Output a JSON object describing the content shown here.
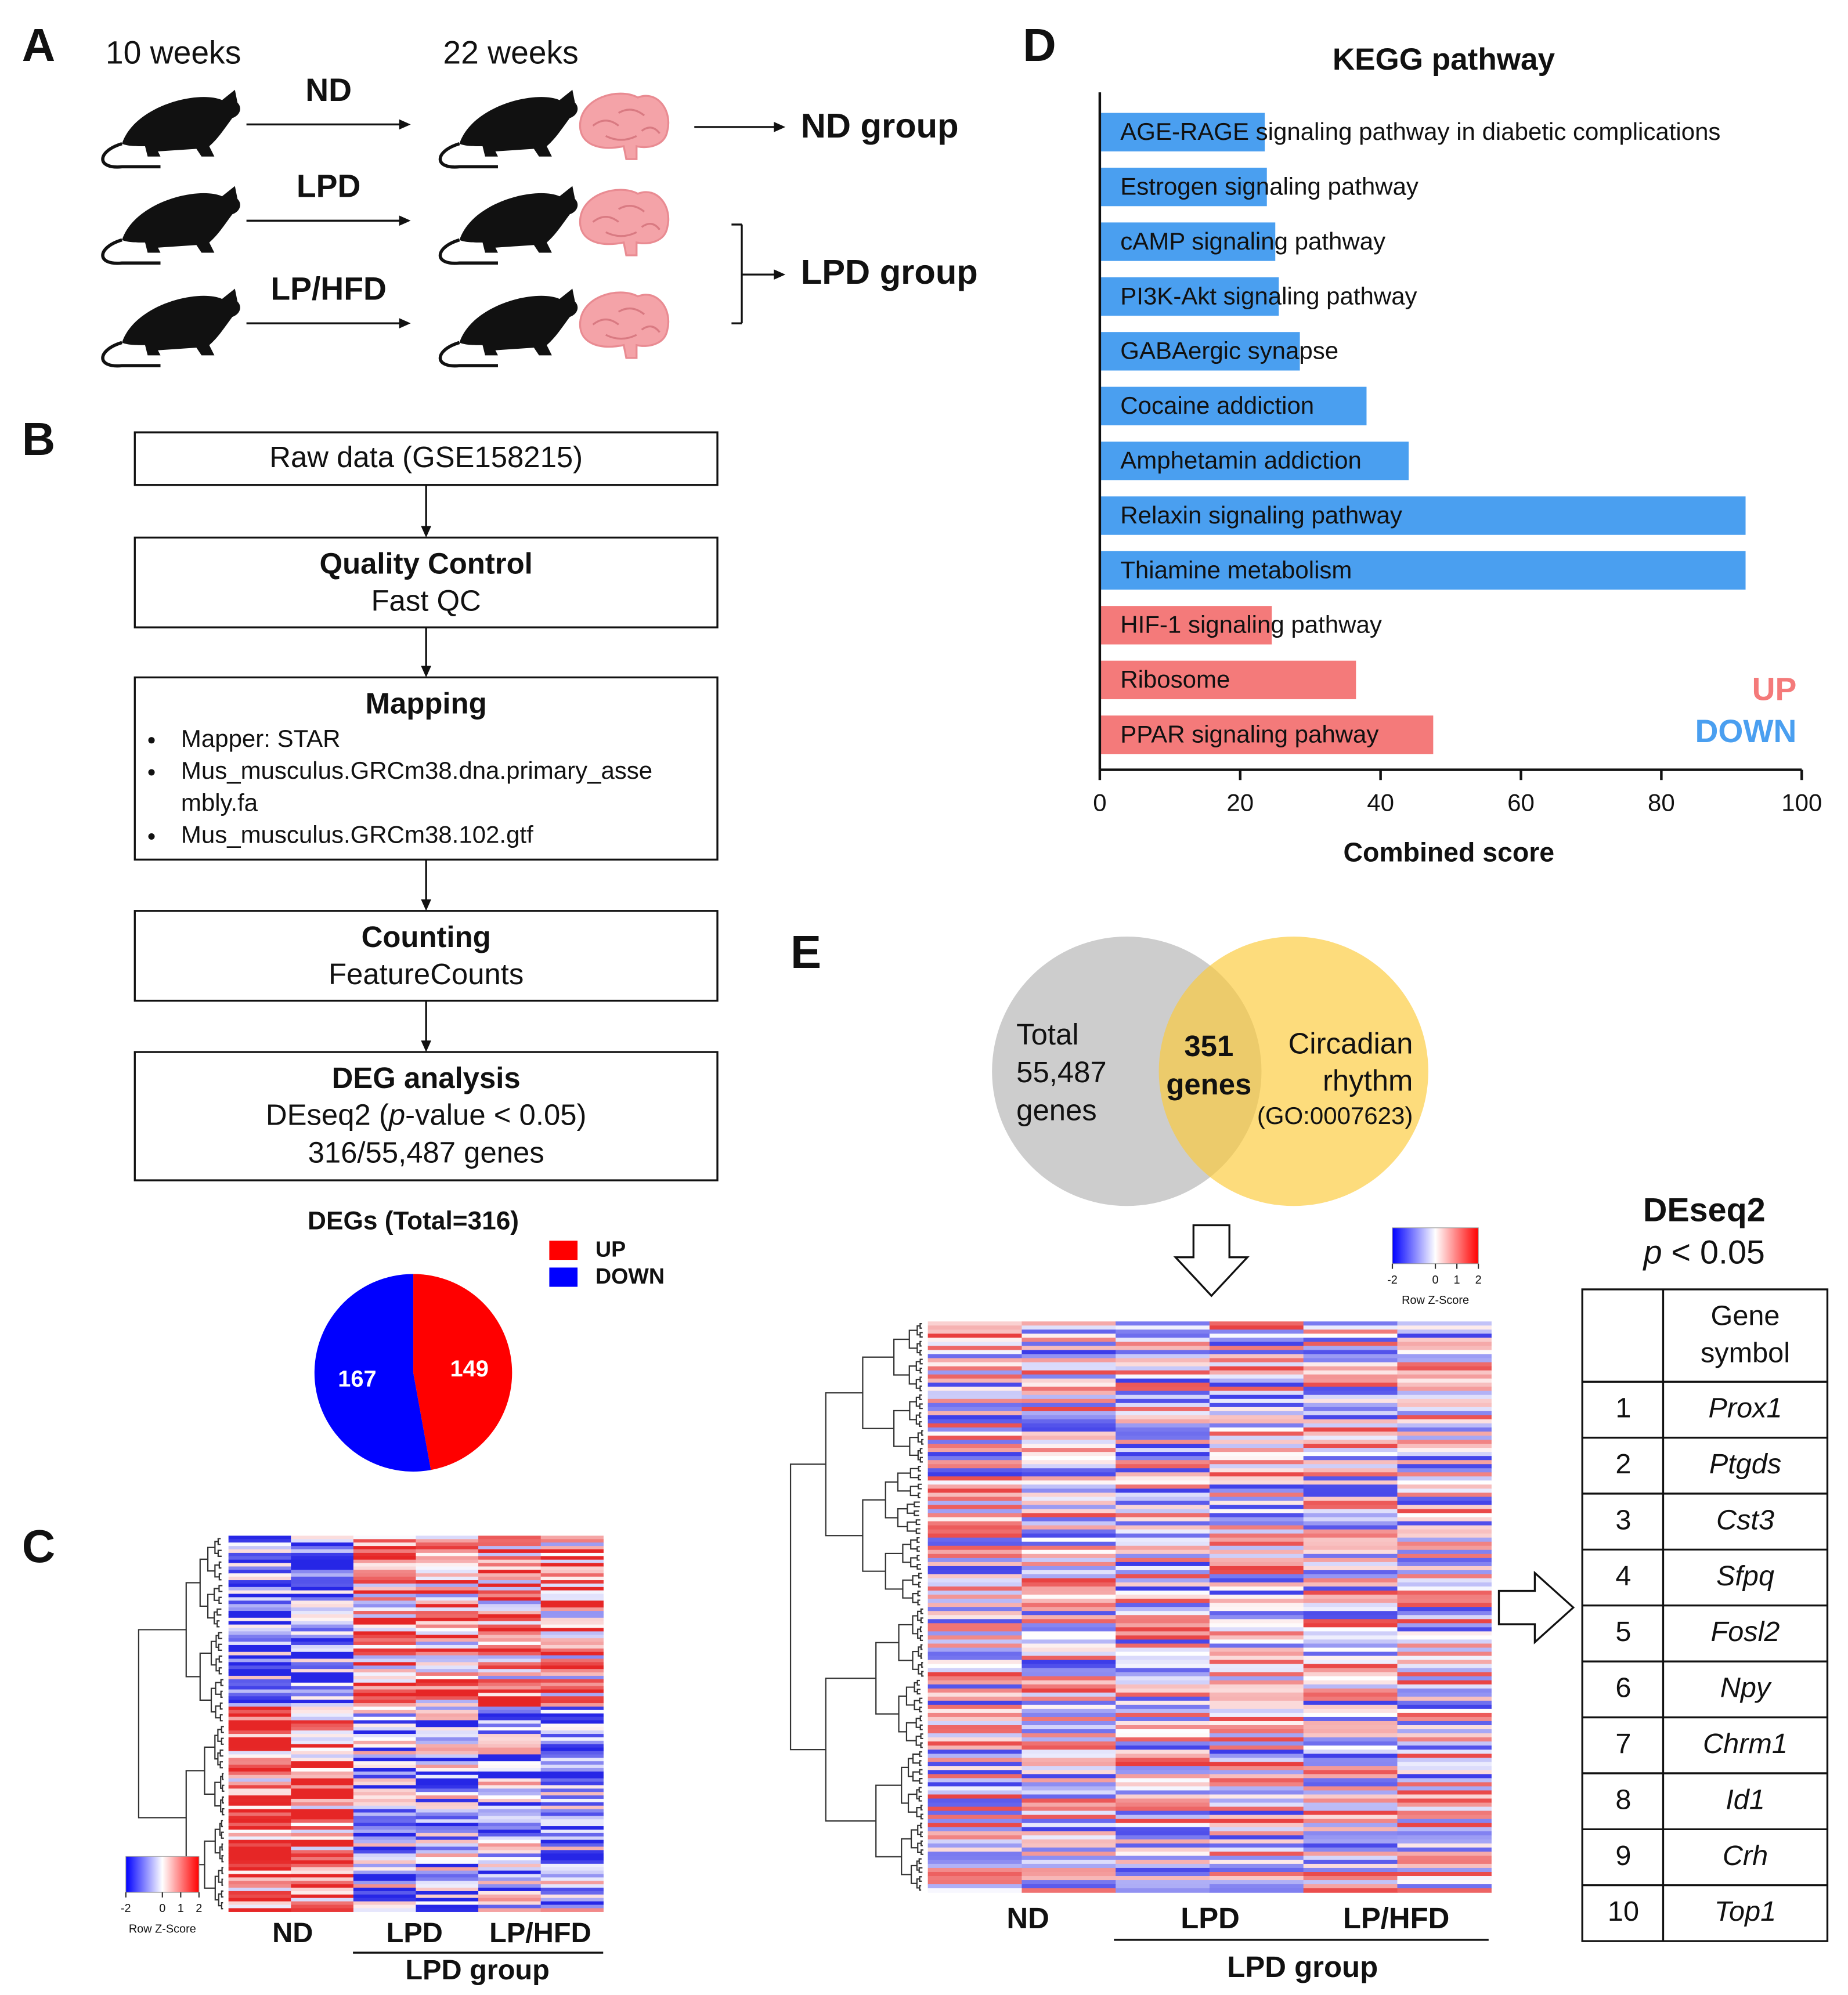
{
  "panel_labels": [
    "A",
    "B",
    "C",
    "D",
    "E"
  ],
  "panel_a": {
    "timepoints": [
      "10 weeks",
      "22 weeks"
    ],
    "diets": [
      "ND",
      "LPD",
      "LP/HFD"
    ],
    "groups": [
      "ND group",
      "LPD group"
    ]
  },
  "panel_b": {
    "flow": [
      {
        "title": "Raw data (GSE158215)"
      },
      {
        "title": "Quality Control",
        "lines": [
          "Fast QC"
        ]
      },
      {
        "title": "Mapping",
        "bullets": [
          [
            "Mapper: STAR"
          ],
          [
            "Mus_musculus.GRCm38.dna.primary_asse",
            "mbly.fa"
          ],
          [
            "Mus_musculus.GRCm38.102.gtf"
          ]
        ]
      },
      {
        "title": "Counting",
        "lines": [
          "FeatureCounts"
        ]
      },
      {
        "title": "DEG analysis",
        "deseq": [
          "DEseq2 (",
          "p",
          "-value < 0.05)"
        ],
        "lines": [
          "316/55,487 genes"
        ]
      }
    ]
  },
  "panel_c": {
    "columns": [
      "ND",
      "LPD",
      "LP/HFD"
    ],
    "group": "LPD group",
    "legend_title": "Row Z-Score",
    "legend_range": [
      -2,
      2
    ],
    "legend_ticks": [
      -2,
      0,
      1,
      2
    ]
  },
  "panel_e": {
    "venn": {
      "left": [
        "Total",
        "55,487",
        "genes"
      ],
      "center": [
        "351",
        "genes"
      ],
      "right": [
        "Circadian",
        "rhythm"
      ],
      "right_id": "(GO:0007623)"
    },
    "columns": [
      "ND",
      "LPD",
      "LP/HFD"
    ],
    "group": "LPD group",
    "legend_title": "Row Z-Score",
    "legend_range": [
      -2,
      2
    ],
    "legend_ticks": [
      -2,
      0,
      1,
      2
    ],
    "table": {
      "title": "DEseq2",
      "subtitle": [
        "p",
        " < 0.05"
      ],
      "header": [
        "Gene",
        "symbol"
      ],
      "rows": [
        [
          1,
          "Prox1"
        ],
        [
          2,
          "Ptgds"
        ],
        [
          3,
          "Cst3"
        ],
        [
          4,
          "Sfpq"
        ],
        [
          5,
          "Fosl2"
        ],
        [
          6,
          "Npy"
        ],
        [
          7,
          "Chrm1"
        ],
        [
          8,
          "Id1"
        ],
        [
          9,
          "Crh"
        ],
        [
          10,
          "Top1"
        ]
      ]
    }
  },
  "chart_data": [
    {
      "type": "pie",
      "title": "DEGs (Total=316)",
      "categories": [
        "UP",
        "DOWN"
      ],
      "values": [
        149,
        167
      ],
      "colors": [
        "#ff0000",
        "#0000ff"
      ]
    },
    {
      "type": "barh",
      "title": "KEGG pathway",
      "x_label": "Combined score",
      "categories": [
        "AGE-RAGE signaling pathway in diabetic complications",
        "Estrogen signaling pathway",
        "cAMP signaling pathway",
        "PI3K-Akt signaling pathway",
        "GABAergic synapse",
        "Cocaine addiction",
        "Amphetamin addiction",
        "Relaxin signaling pathway",
        "Thiamine metabolism",
        "HIF-1 signaling pathway",
        "Ribosome",
        "PPAR signaling pahway"
      ],
      "series": [
        {
          "name": "UP",
          "color": "#f47a7a",
          "values": [
            null,
            null,
            null,
            null,
            null,
            null,
            null,
            null,
            null,
            24.5,
            36.5,
            47.5
          ]
        },
        {
          "name": "DOWN",
          "color": "#4a9ff0",
          "values": [
            23.5,
            23.8,
            25,
            25.5,
            28.5,
            38,
            44,
            92,
            92,
            null,
            null,
            null
          ]
        }
      ],
      "xlim": [
        0,
        100
      ],
      "xticks": [
        0,
        20,
        40,
        60,
        80,
        100
      ],
      "legend": "lower right"
    }
  ]
}
